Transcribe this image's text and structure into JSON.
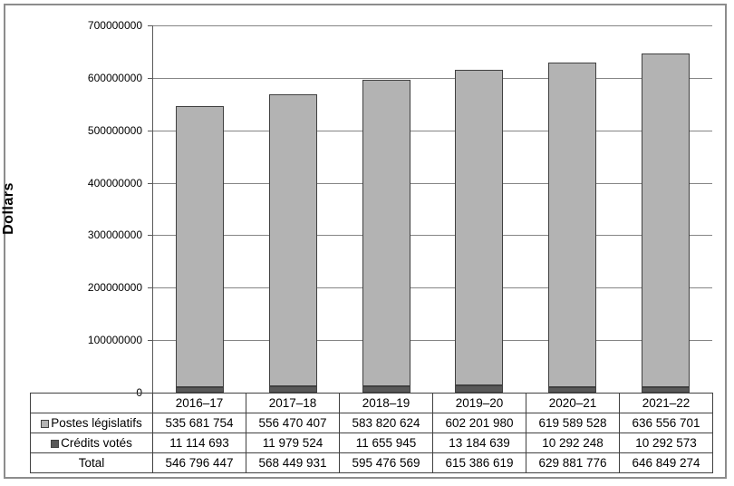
{
  "figure": {
    "background": "#ffffff",
    "border_color": "#8c8c8c"
  },
  "chart_data": {
    "type": "bar",
    "stacked": true,
    "title": "",
    "ylabel": "Dollars",
    "xlabel": "",
    "ylim": [
      0,
      700000000
    ],
    "ytick_step": 100000000,
    "ytick_labels": [
      "0",
      "100000000",
      "200000000",
      "300000000",
      "400000000",
      "500000000",
      "600000000",
      "700000000"
    ],
    "grid": true,
    "legend_position": "left-of-data-table",
    "categories": [
      "2016–17",
      "2017–18",
      "2018–19",
      "2019–20",
      "2020–21",
      "2021–22"
    ],
    "series": [
      {
        "name": "Postes législatifs",
        "color": "#b3b3b3",
        "stack_order": "top",
        "values": [
          535681754,
          556470407,
          583820624,
          602201980,
          619589528,
          636556701
        ],
        "display": [
          "535 681 754",
          "556 470 407",
          "583 820 624",
          "602 201 980",
          "619 589 528",
          "636 556 701"
        ]
      },
      {
        "name": "Crédits votés",
        "color": "#595959",
        "stack_order": "bottom",
        "values": [
          11114693,
          11979524,
          11655945,
          13184639,
          10292248,
          10292573
        ],
        "display": [
          "11 114 693",
          "11 979 524",
          "11 655 945",
          "13 184 639",
          "10 292 248",
          "10 292 573"
        ]
      }
    ],
    "totals_row": {
      "label": "Total",
      "values": [
        546796447,
        568449931,
        595476569,
        615386619,
        629881776,
        646849274
      ],
      "display": [
        "546 796 447",
        "568 449 931",
        "595 476 569",
        "615 386 619",
        "629 881 776",
        "646 849 274"
      ]
    }
  },
  "colors": {
    "bar_light_fill": "#b3b3b3",
    "bar_dark_fill": "#595959",
    "bar_border": "#404040",
    "gridline": "#858585",
    "axis_line": "#595959",
    "table_border": "#404040",
    "text": "#000000"
  }
}
